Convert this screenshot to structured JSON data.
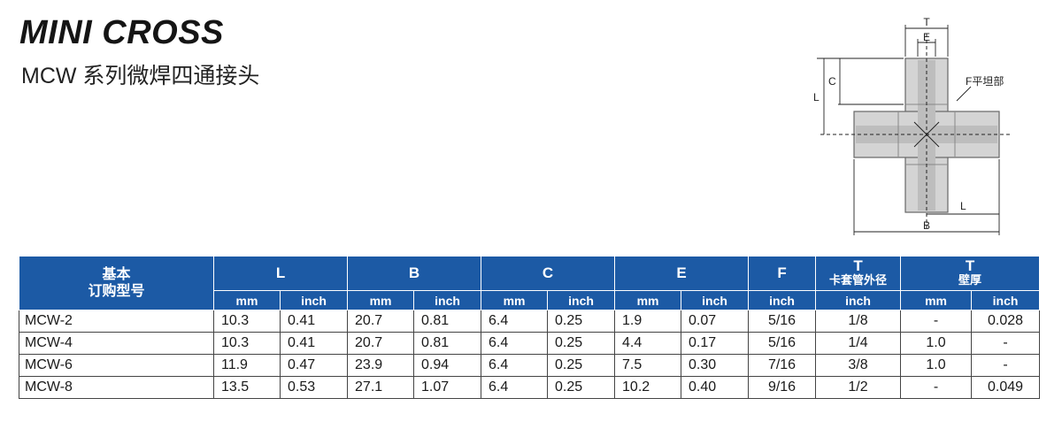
{
  "header": {
    "title": "MINI CROSS",
    "subtitle": "MCW 系列微焊四通接头"
  },
  "diagram": {
    "label_t": "T",
    "label_e": "E",
    "label_l_left": "L",
    "label_c": "C",
    "label_f": "F平坦部",
    "label_l_bottom": "L",
    "label_b": "B"
  },
  "table": {
    "model_header_line1": "基本",
    "model_header_line2": "订购型号",
    "groups": {
      "L": "L",
      "B": "B",
      "C": "C",
      "E": "E",
      "F": "F",
      "T1": "T",
      "T1_sub": "卡套管外径",
      "T2": "T",
      "T2_sub": "壁厚"
    },
    "units": [
      "mm",
      "inch",
      "mm",
      "inch",
      "mm",
      "inch",
      "mm",
      "inch",
      "inch",
      "inch",
      "mm",
      "inch"
    ],
    "rows": [
      [
        "MCW-2",
        "10.3",
        "0.41",
        "20.7",
        "0.81",
        "6.4",
        "0.25",
        "1.9",
        "0.07",
        "5/16",
        "1/8",
        "-",
        "0.028"
      ],
      [
        "MCW-4",
        "10.3",
        "0.41",
        "20.7",
        "0.81",
        "6.4",
        "0.25",
        "4.4",
        "0.17",
        "5/16",
        "1/4",
        "1.0",
        "-"
      ],
      [
        "MCW-6",
        "11.9",
        "0.47",
        "23.9",
        "0.94",
        "6.4",
        "0.25",
        "7.5",
        "0.30",
        "7/16",
        "3/8",
        "1.0",
        "-"
      ],
      [
        "MCW-8",
        "13.5",
        "0.53",
        "27.1",
        "1.07",
        "6.4",
        "0.25",
        "10.2",
        "0.40",
        "9/16",
        "1/2",
        "-",
        "0.049"
      ]
    ]
  },
  "colors": {
    "header_bg": "#1c5aa5",
    "header_text": "#ffffff"
  }
}
